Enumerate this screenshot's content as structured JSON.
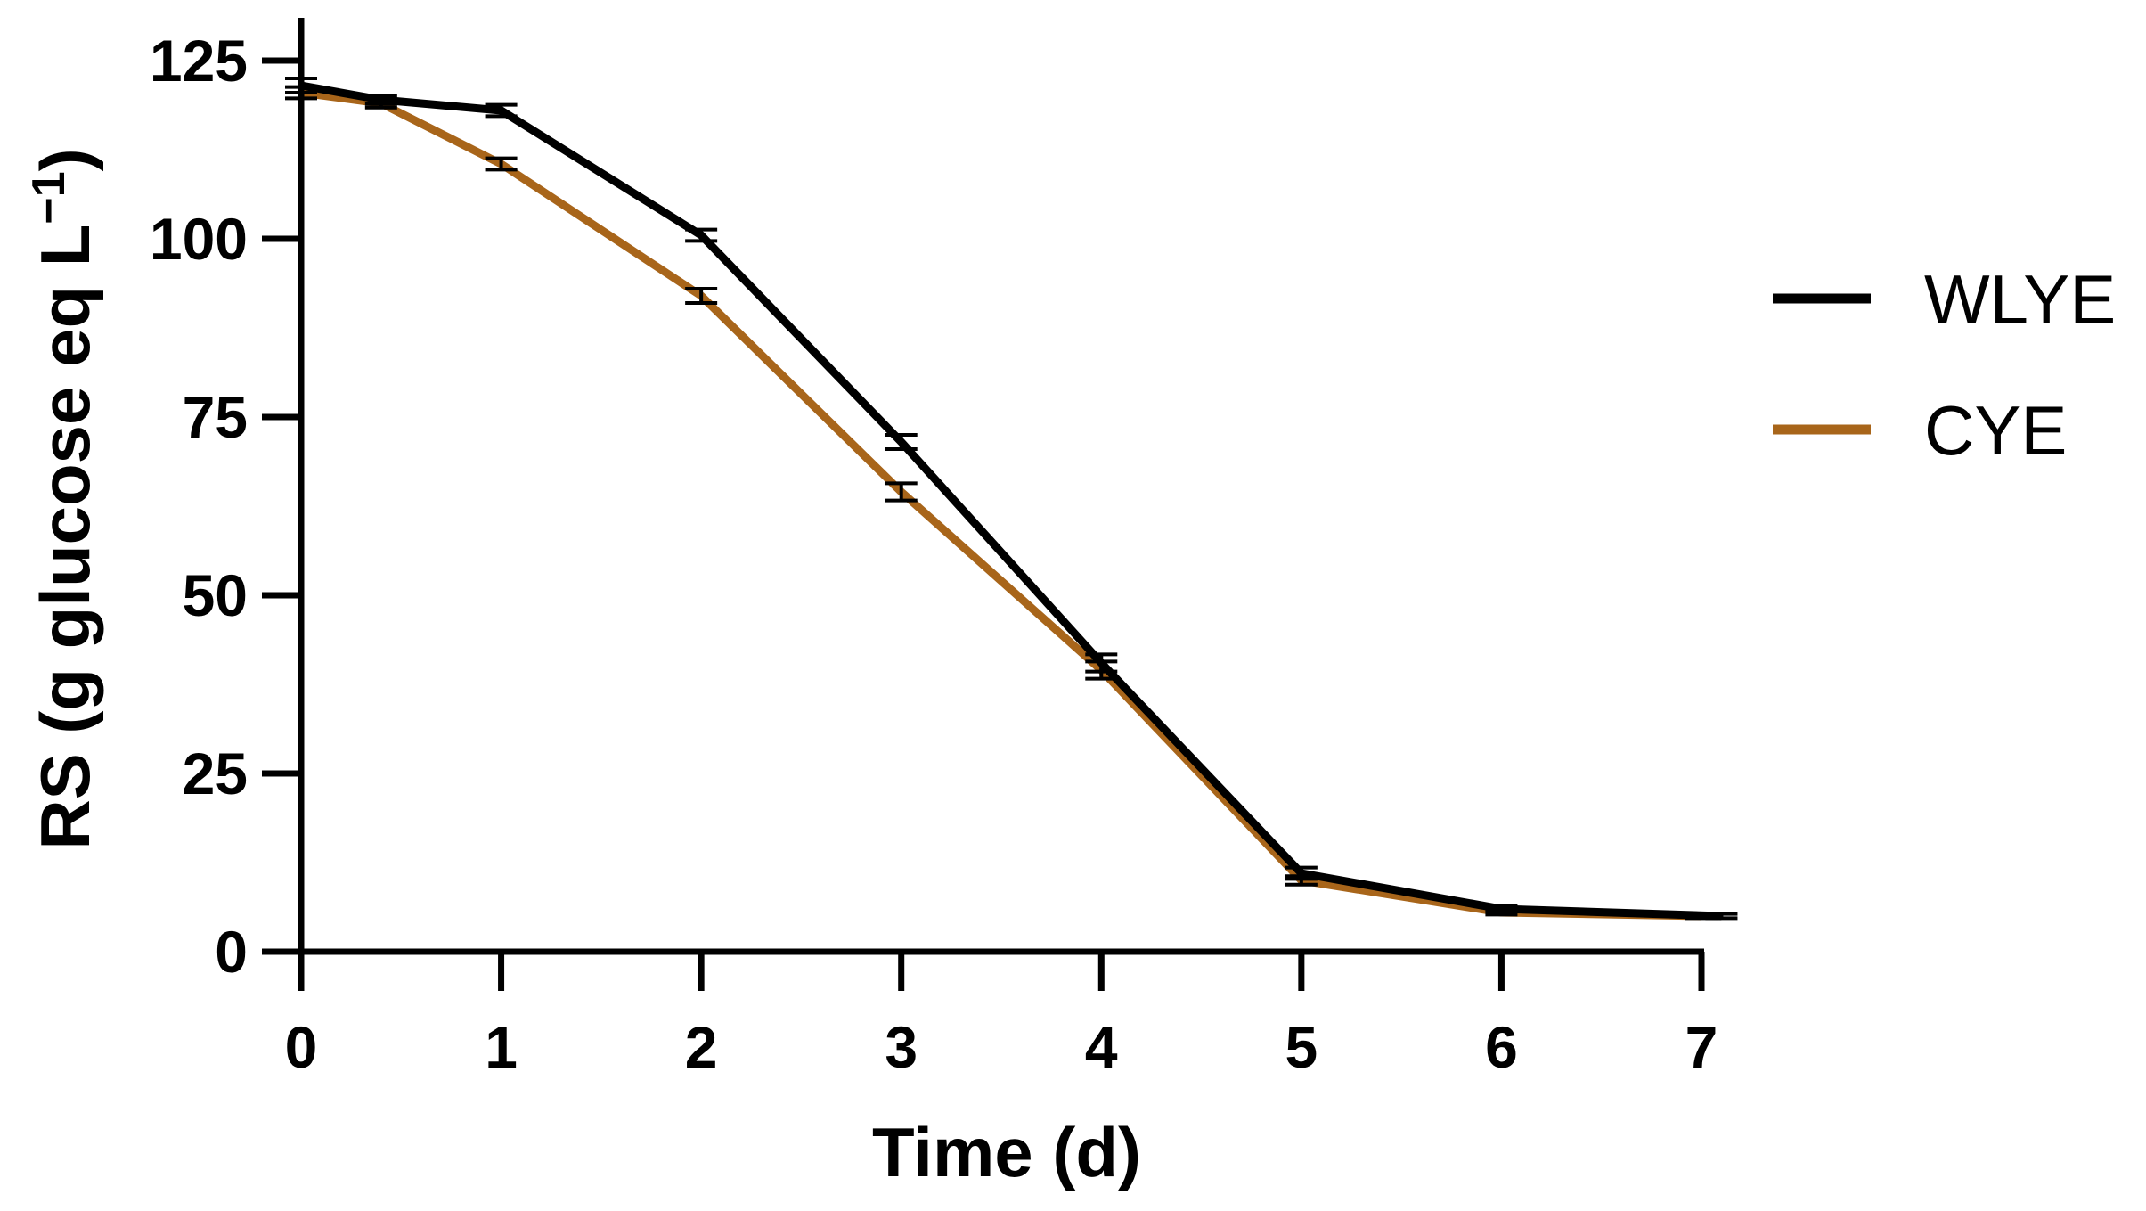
{
  "chart_data": {
    "type": "line",
    "title": "",
    "xlabel": "Time (d)",
    "ylabel_main": "RS (g glucose eq L",
    "ylabel_sup": "−1",
    "ylabel_close": ")",
    "xlim": [
      0,
      7
    ],
    "ylim": [
      0,
      125
    ],
    "xticks": [
      0,
      1,
      2,
      3,
      4,
      5,
      6,
      7
    ],
    "yticks": [
      0,
      25,
      50,
      75,
      100,
      125
    ],
    "grid": false,
    "legend_position": "right",
    "series": [
      {
        "name": "WLYE",
        "color": "#000000",
        "points": [
          {
            "x": 0,
            "y": 121.5,
            "err": 1.0
          },
          {
            "x": 0.4,
            "y": 119.5,
            "err": 0.6
          },
          {
            "x": 1,
            "y": 118.0,
            "err": 0.8
          },
          {
            "x": 2,
            "y": 100.5,
            "err": 0.8
          },
          {
            "x": 3,
            "y": 71.5,
            "err": 1.0
          },
          {
            "x": 4,
            "y": 40.5,
            "err": 1.2
          },
          {
            "x": 5,
            "y": 11.0,
            "err": 0.8
          },
          {
            "x": 6,
            "y": 6.0,
            "err": 0.4
          },
          {
            "x": 7.1,
            "y": 5.0,
            "err": 0.3
          }
        ]
      },
      {
        "name": "CYE",
        "color": "#A8651A",
        "points": [
          {
            "x": 0,
            "y": 120.5,
            "err": 0.8
          },
          {
            "x": 0.4,
            "y": 119.0,
            "err": 0.6
          },
          {
            "x": 1,
            "y": 110.5,
            "err": 0.8
          },
          {
            "x": 2,
            "y": 92.0,
            "err": 1.0
          },
          {
            "x": 3,
            "y": 64.5,
            "err": 1.2
          },
          {
            "x": 4,
            "y": 39.5,
            "err": 1.2
          },
          {
            "x": 5,
            "y": 10.0,
            "err": 0.6
          },
          {
            "x": 6,
            "y": 5.5,
            "err": 0.3
          },
          {
            "x": 7,
            "y": 5.0,
            "err": 0.3
          }
        ]
      }
    ]
  }
}
